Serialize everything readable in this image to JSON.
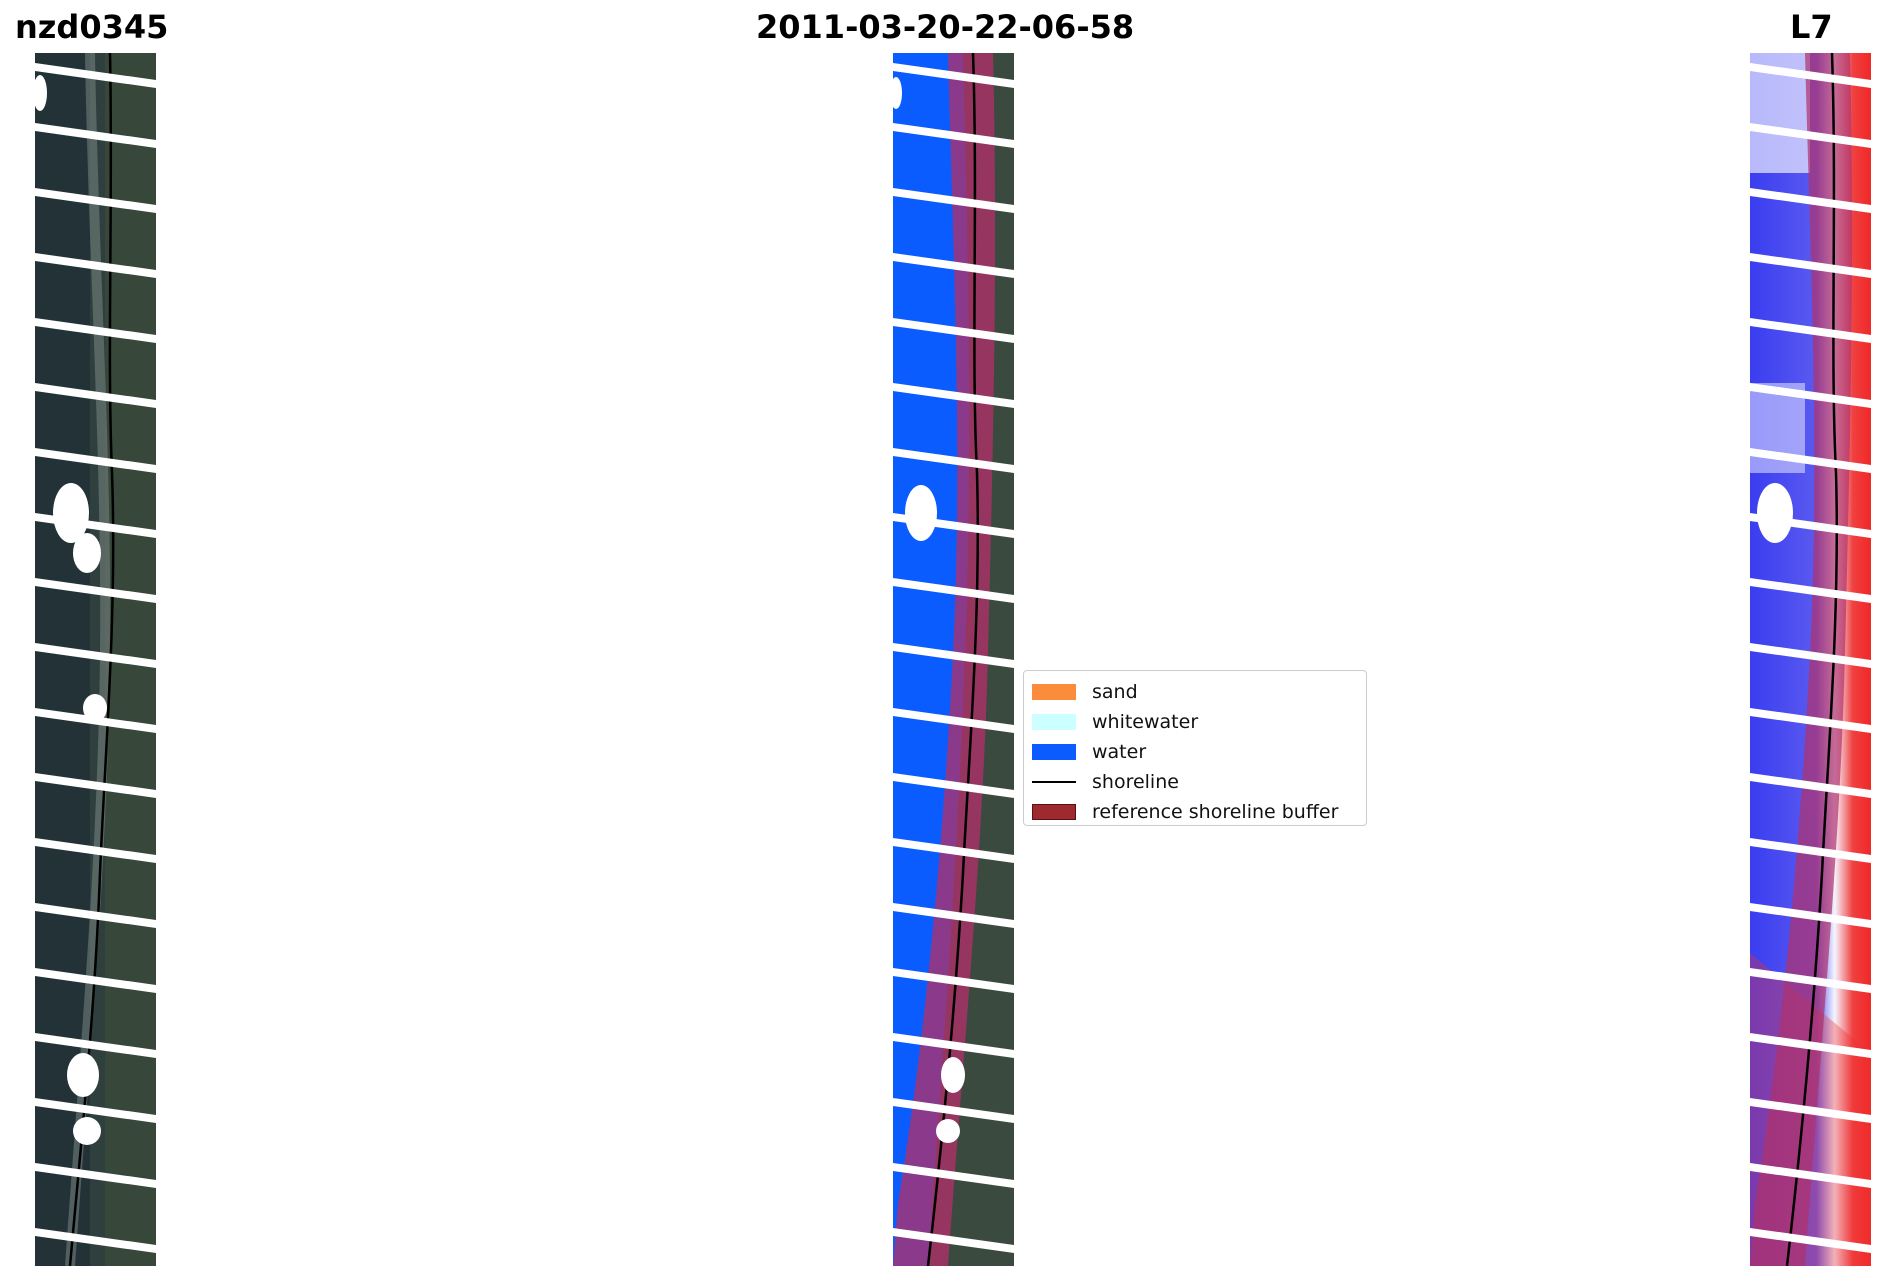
{
  "figure": {
    "site_name": "nzd0345",
    "date": "2011-03-20-22-06-58",
    "satellite": "L7"
  },
  "panels": [
    {
      "name": "rgb-image"
    },
    {
      "name": "classified-image"
    },
    {
      "name": "mndwi-image"
    }
  ],
  "legend": {
    "items": [
      {
        "label": "sand",
        "kind": "patch",
        "color": "#fb8c3c"
      },
      {
        "label": "whitewater",
        "kind": "patch",
        "color": "#ccffff"
      },
      {
        "label": "water",
        "kind": "patch",
        "color": "#0a5cff"
      },
      {
        "label": "shoreline",
        "kind": "line",
        "color": "#000000"
      },
      {
        "label": "reference shoreline buffer",
        "kind": "patch",
        "color": "#9e2a2f",
        "edge": "#5a1014"
      }
    ]
  },
  "colors": {
    "dark_coast": "#2e3d3a",
    "water_blue": "#0a5cff",
    "buffer": "#b0306a",
    "index_blue": "#3a3df0",
    "index_red": "#f02828"
  }
}
